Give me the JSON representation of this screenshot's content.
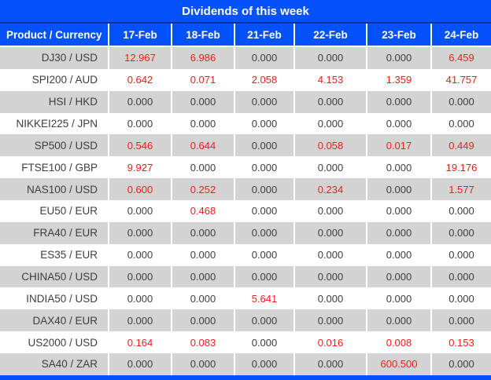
{
  "title": "Dividends of this week",
  "columns": [
    "Product / Currency",
    "17-Feb",
    "18-Feb",
    "21-Feb",
    "22-Feb",
    "23-Feb",
    "24-Feb"
  ],
  "rows": [
    {
      "label": "DJ30 / USD",
      "values": [
        "12.967",
        "6.986",
        "0.000",
        "0.000",
        "0.000",
        "6.459"
      ]
    },
    {
      "label": "SPI200 / AUD",
      "values": [
        "0.642",
        "0.071",
        "2.058",
        "4.153",
        "1.359",
        "41.757"
      ]
    },
    {
      "label": "HSI / HKD",
      "values": [
        "0.000",
        "0.000",
        "0.000",
        "0.000",
        "0.000",
        "0.000"
      ]
    },
    {
      "label": "NIKKEI225 / JPN",
      "values": [
        "0.000",
        "0.000",
        "0.000",
        "0.000",
        "0.000",
        "0.000"
      ]
    },
    {
      "label": "SP500 / USD",
      "values": [
        "0.546",
        "0.644",
        "0.000",
        "0.058",
        "0.017",
        "0.449"
      ]
    },
    {
      "label": "FTSE100 / GBP",
      "values": [
        "9.927",
        "0.000",
        "0.000",
        "0.000",
        "0.000",
        "19.176"
      ]
    },
    {
      "label": "NAS100 / USD",
      "values": [
        "0.600",
        "0.252",
        "0.000",
        "0.234",
        "0.000",
        "1.577"
      ]
    },
    {
      "label": "EU50 / EUR",
      "values": [
        "0.000",
        "0.468",
        "0.000",
        "0.000",
        "0.000",
        "0.000"
      ]
    },
    {
      "label": "FRA40 / EUR",
      "values": [
        "0.000",
        "0.000",
        "0.000",
        "0.000",
        "0.000",
        "0.000"
      ]
    },
    {
      "label": "ES35 / EUR",
      "values": [
        "0.000",
        "0.000",
        "0.000",
        "0.000",
        "0.000",
        "0.000"
      ]
    },
    {
      "label": "CHINA50 / USD",
      "values": [
        "0.000",
        "0.000",
        "0.000",
        "0.000",
        "0.000",
        "0.000"
      ]
    },
    {
      "label": "INDIA50 / USD",
      "values": [
        "0.000",
        "0.000",
        "5.641",
        "0.000",
        "0.000",
        "0.000"
      ]
    },
    {
      "label": "DAX40 / EUR",
      "values": [
        "0.000",
        "0.000",
        "0.000",
        "0.000",
        "0.000",
        "0.000"
      ]
    },
    {
      "label": "US2000 / USD",
      "values": [
        "0.164",
        "0.083",
        "0.000",
        "0.016",
        "0.008",
        "0.153"
      ]
    },
    {
      "label": "SA40 / ZAR",
      "values": [
        "0.000",
        "0.000",
        "0.000",
        "0.000",
        "600.500",
        "0.000"
      ]
    }
  ],
  "colors": {
    "header_bg": "#0452fa",
    "header_divider": "#0233a0",
    "row_stripe": "#d3d3d3",
    "highlight_value": "#f31c1c",
    "text": "#3d3d3d"
  }
}
